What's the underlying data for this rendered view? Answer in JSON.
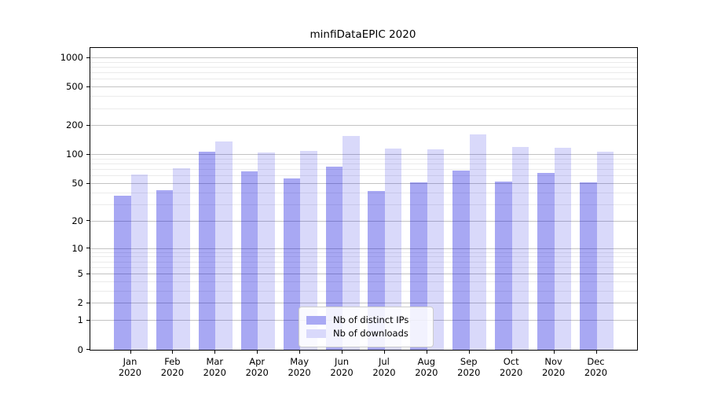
{
  "chart_data": {
    "type": "bar",
    "title": "minfiDataEPIC 2020",
    "categories": [
      "Jan 2020",
      "Feb 2020",
      "Mar 2020",
      "Apr 2020",
      "May 2020",
      "Jun 2020",
      "Jul 2020",
      "Aug 2020",
      "Sep 2020",
      "Oct 2020",
      "Nov 2020",
      "Dec 2020"
    ],
    "x_tick_labels": [
      {
        "month": "Jan",
        "year": "2020"
      },
      {
        "month": "Feb",
        "year": "2020"
      },
      {
        "month": "Mar",
        "year": "2020"
      },
      {
        "month": "Apr",
        "year": "2020"
      },
      {
        "month": "May",
        "year": "2020"
      },
      {
        "month": "Jun",
        "year": "2020"
      },
      {
        "month": "Jul",
        "year": "2020"
      },
      {
        "month": "Aug",
        "year": "2020"
      },
      {
        "month": "Sep",
        "year": "2020"
      },
      {
        "month": "Oct",
        "year": "2020"
      },
      {
        "month": "Nov",
        "year": "2020"
      },
      {
        "month": "Dec",
        "year": "2020"
      }
    ],
    "series": [
      {
        "name": "Nb of distinct IPs",
        "rendered_color": "#a9a9f4",
        "base_color": "#0000dc",
        "alpha": 0.34,
        "values": [
          37,
          43,
          107,
          67,
          57,
          75,
          42,
          52,
          68,
          53,
          65,
          52
        ]
      },
      {
        "name": "Nb of downloads",
        "rendered_color": "#d9d9fb",
        "base_color": "#0000dd",
        "alpha": 0.15,
        "values": [
          62,
          73,
          138,
          105,
          110,
          157,
          116,
          114,
          163,
          120,
          118,
          107
        ]
      }
    ],
    "yscale": "log1p",
    "yticks": [
      0,
      1,
      2,
      5,
      10,
      20,
      50,
      100,
      200,
      500,
      1000
    ],
    "minor_gridline_values": [
      3,
      4,
      6,
      7,
      8,
      9,
      30,
      40,
      60,
      70,
      80,
      90,
      300,
      400,
      600,
      700,
      800,
      900
    ],
    "ylim": [
      0,
      1270
    ],
    "xlabel": "",
    "ylabel": "",
    "grid": "both",
    "legend_position": "lower center"
  }
}
